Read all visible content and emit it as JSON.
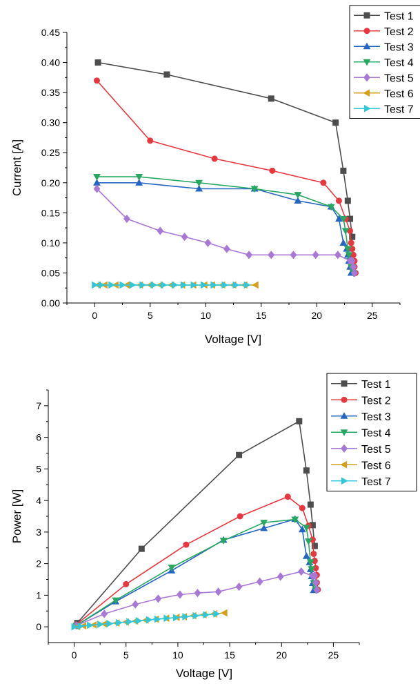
{
  "chart_data": [
    {
      "type": "line",
      "title": "",
      "xlabel": "Voltage [V]",
      "ylabel": "Current [A]",
      "xlim": [
        -2.5,
        27.5
      ],
      "ylim": [
        0,
        0.45
      ],
      "xticks": [
        0,
        5,
        10,
        15,
        20,
        25
      ],
      "yticks": [
        0.0,
        0.05,
        0.1,
        0.15,
        0.2,
        0.25,
        0.3,
        0.35,
        0.4,
        0.45
      ],
      "ytick_decimals": 2,
      "grid": false,
      "legend_position": "top-right",
      "series": [
        {
          "name": "Test 1",
          "color": "#4d4d4d",
          "marker": "square",
          "x": [
            0.3,
            6.5,
            15.9,
            21.7,
            22.4,
            22.8,
            23.0,
            23.2
          ],
          "y": [
            0.4,
            0.38,
            0.34,
            0.3,
            0.22,
            0.17,
            0.14,
            0.11
          ]
        },
        {
          "name": "Test 2",
          "color": "#e8373e",
          "marker": "circle",
          "x": [
            0.2,
            5.0,
            10.8,
            16.0,
            20.6,
            22.0,
            22.6,
            23.0,
            23.1,
            23.2,
            23.3,
            23.4,
            23.4,
            23.5
          ],
          "y": [
            0.37,
            0.27,
            0.24,
            0.22,
            0.2,
            0.17,
            0.14,
            0.12,
            0.1,
            0.09,
            0.08,
            0.07,
            0.06,
            0.05
          ]
        },
        {
          "name": "Test 3",
          "color": "#2565c4",
          "marker": "triangle-up",
          "x": [
            0.2,
            4.0,
            9.4,
            14.4,
            18.3,
            21.3,
            22.0,
            22.4,
            22.7,
            22.8,
            22.9,
            23.0,
            23.1,
            23.2
          ],
          "y": [
            0.2,
            0.2,
            0.19,
            0.19,
            0.17,
            0.16,
            0.14,
            0.1,
            0.09,
            0.08,
            0.07,
            0.06,
            0.05,
            0.05
          ]
        },
        {
          "name": "Test 4",
          "color": "#27a860",
          "marker": "triangle-down",
          "x": [
            0.2,
            4.0,
            9.4,
            14.4,
            18.3,
            21.3,
            22.4,
            22.6,
            22.8,
            22.9,
            23.0,
            23.1,
            23.2,
            23.3
          ],
          "y": [
            0.21,
            0.21,
            0.2,
            0.19,
            0.18,
            0.16,
            0.14,
            0.12,
            0.09,
            0.08,
            0.07,
            0.06,
            0.06,
            0.05
          ]
        },
        {
          "name": "Test 5",
          "color": "#a778d6",
          "marker": "diamond",
          "x": [
            0.2,
            2.9,
            5.9,
            8.1,
            10.2,
            11.9,
            13.9,
            15.9,
            17.9,
            19.9,
            21.9,
            23.0,
            23.2,
            23.3,
            23.3,
            23.4,
            23.4
          ],
          "y": [
            0.19,
            0.14,
            0.12,
            0.11,
            0.1,
            0.09,
            0.08,
            0.08,
            0.08,
            0.08,
            0.08,
            0.07,
            0.07,
            0.06,
            0.06,
            0.05,
            0.05
          ]
        },
        {
          "name": "Test 6",
          "color": "#d4a017",
          "marker": "triangle-left",
          "x": [
            0.3,
            0.9,
            1.9,
            2.9,
            4.1,
            5.0,
            5.9,
            6.9,
            7.9,
            8.9,
            9.9,
            10.6,
            11.5,
            12.5,
            13.5,
            14.5
          ],
          "y": [
            0.03,
            0.03,
            0.03,
            0.03,
            0.03,
            0.03,
            0.03,
            0.03,
            0.03,
            0.03,
            0.03,
            0.03,
            0.03,
            0.03,
            0.03,
            0.03
          ]
        },
        {
          "name": "Test 7",
          "color": "#30c8d8",
          "marker": "triangle-right",
          "x": [
            0.0,
            0.6,
            1.5,
            2.5,
            3.4,
            4.3,
            5.3,
            6.2,
            7.2,
            8.0,
            8.9,
            9.8,
            10.7,
            11.7,
            12.7,
            13.7
          ],
          "y": [
            0.03,
            0.03,
            0.03,
            0.03,
            0.03,
            0.03,
            0.03,
            0.03,
            0.03,
            0.03,
            0.03,
            0.03,
            0.03,
            0.03,
            0.03,
            0.03
          ]
        }
      ]
    },
    {
      "type": "line",
      "title": "",
      "xlabel": "Voltage [V]",
      "ylabel": "Power [W]",
      "xlim": [
        -2.5,
        27.5
      ],
      "ylim": [
        -0.5,
        7.5
      ],
      "xticks": [
        0,
        5,
        10,
        15,
        20,
        25
      ],
      "yticks": [
        0,
        1,
        2,
        3,
        4,
        5,
        6,
        7
      ],
      "ytick_decimals": 0,
      "grid": false,
      "legend_position": "top-right",
      "series": [
        {
          "name": "Test 1",
          "color": "#4d4d4d",
          "marker": "square",
          "x": [
            0.3,
            6.5,
            15.9,
            21.7,
            22.4,
            22.8,
            23.0,
            23.2
          ],
          "y": [
            0.12,
            2.47,
            5.44,
            6.51,
            4.95,
            3.87,
            3.22,
            2.56
          ]
        },
        {
          "name": "Test 2",
          "color": "#e8373e",
          "marker": "circle",
          "x": [
            0.2,
            5.0,
            10.8,
            16.0,
            20.6,
            22.0,
            22.6,
            23.0,
            23.1,
            23.2,
            23.3,
            23.4,
            23.4,
            23.5
          ],
          "y": [
            0.07,
            1.35,
            2.6,
            3.5,
            4.12,
            3.76,
            3.2,
            2.76,
            2.31,
            2.09,
            1.86,
            1.64,
            1.4,
            1.18
          ]
        },
        {
          "name": "Test 3",
          "color": "#2565c4",
          "marker": "triangle-up",
          "x": [
            0.2,
            4.0,
            9.4,
            14.4,
            18.3,
            21.3,
            22.0,
            22.4,
            22.7,
            22.8,
            22.9,
            23.0,
            23.1,
            23.2
          ],
          "y": [
            0.04,
            0.8,
            1.78,
            2.75,
            3.12,
            3.41,
            3.08,
            2.24,
            2.04,
            1.82,
            1.6,
            1.38,
            1.16,
            1.16
          ]
        },
        {
          "name": "Test 4",
          "color": "#27a860",
          "marker": "triangle-down",
          "x": [
            0.2,
            4.0,
            9.4,
            14.4,
            18.3,
            21.3,
            22.4,
            22.6,
            22.8,
            22.9,
            23.0,
            23.1,
            23.2,
            23.3
          ],
          "y": [
            0.04,
            0.84,
            1.88,
            2.73,
            3.3,
            3.4,
            3.14,
            2.71,
            2.05,
            1.83,
            1.61,
            1.39,
            1.39,
            1.17
          ]
        },
        {
          "name": "Test 5",
          "color": "#a778d6",
          "marker": "diamond",
          "x": [
            0.2,
            2.9,
            5.9,
            8.1,
            10.2,
            11.9,
            13.9,
            15.9,
            17.9,
            19.9,
            21.9,
            23.0,
            23.2,
            23.3,
            23.3,
            23.4,
            23.4
          ],
          "y": [
            0.04,
            0.41,
            0.71,
            0.89,
            1.02,
            1.07,
            1.11,
            1.27,
            1.43,
            1.59,
            1.75,
            1.61,
            1.62,
            1.4,
            1.4,
            1.17,
            1.17
          ]
        },
        {
          "name": "Test 6",
          "color": "#d4a017",
          "marker": "triangle-left",
          "x": [
            0.3,
            0.9,
            1.9,
            2.9,
            4.1,
            5.0,
            5.9,
            6.9,
            7.9,
            8.9,
            9.9,
            10.6,
            11.5,
            12.5,
            13.5,
            14.5
          ],
          "y": [
            0.01,
            0.03,
            0.06,
            0.09,
            0.12,
            0.15,
            0.18,
            0.21,
            0.24,
            0.27,
            0.3,
            0.32,
            0.35,
            0.38,
            0.41,
            0.44
          ]
        },
        {
          "name": "Test 7",
          "color": "#30c8d8",
          "marker": "triangle-right",
          "x": [
            0.0,
            0.6,
            1.5,
            2.5,
            3.4,
            4.3,
            5.3,
            6.2,
            7.2,
            8.0,
            8.9,
            9.8,
            10.7,
            11.7,
            12.7,
            13.7
          ],
          "y": [
            0.0,
            0.02,
            0.05,
            0.08,
            0.1,
            0.13,
            0.16,
            0.19,
            0.22,
            0.24,
            0.27,
            0.29,
            0.32,
            0.35,
            0.38,
            0.41
          ]
        }
      ]
    }
  ]
}
